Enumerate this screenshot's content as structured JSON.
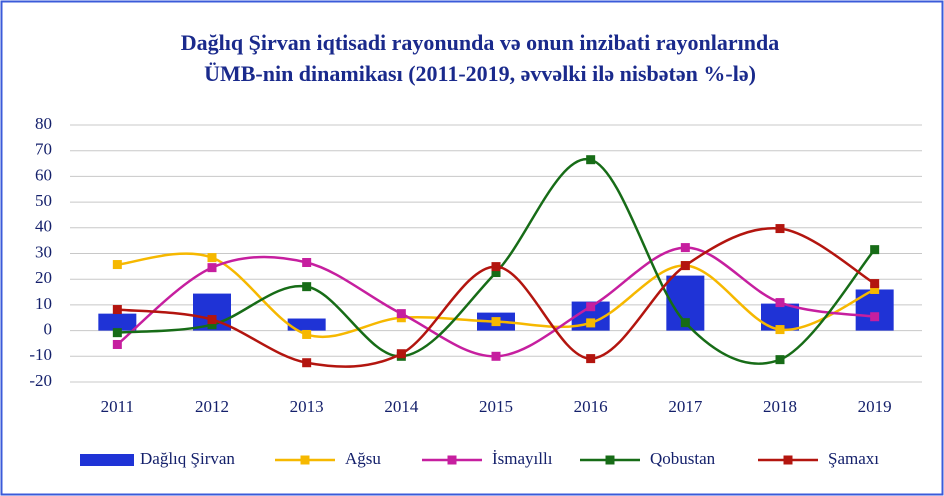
{
  "chart_data": {
    "type": "bar-line",
    "title": [
      "Dağlıq Şirvan iqtisadi rayonunda və onun inzibati rayonlarında",
      "ÜMB-nin dinamikası (2011-2019, əvvəlki ilə nisbətən %-lə)"
    ],
    "categories": [
      "2011",
      "2012",
      "2013",
      "2014",
      "2015",
      "2016",
      "2017",
      "2018",
      "2019"
    ],
    "ylim": [
      -20,
      80
    ],
    "yticks": [
      -20,
      -10,
      0,
      10,
      20,
      30,
      40,
      50,
      60,
      70,
      80
    ],
    "grid": true,
    "legend": "bottom",
    "series": [
      {
        "name": "Dağlıq Şirvan",
        "type": "bar",
        "color": "#1f33d6",
        "values": [
          6.6,
          14.4,
          4.7,
          0,
          7,
          11.3,
          21.4,
          10.5,
          16
        ]
      },
      {
        "name": "Ağsu",
        "type": "line",
        "color": "#f6b800",
        "values": [
          25.7,
          28.4,
          -1.5,
          5,
          3.5,
          3,
          25.3,
          0.4,
          16
        ]
      },
      {
        "name": "İsmayıllı",
        "type": "line",
        "color": "#c61f9f",
        "values": [
          -5.4,
          24.5,
          26.5,
          6.6,
          -10,
          9.3,
          32.3,
          10.9,
          5.4
        ]
      },
      {
        "name": "Qobustan",
        "type": "line",
        "color": "#176c17",
        "values": [
          -0.8,
          2.3,
          17.1,
          -10,
          22.6,
          66.5,
          3.1,
          -11.3,
          31.5
        ]
      },
      {
        "name": "Şamaxı",
        "type": "line",
        "color": "#b3150f",
        "values": [
          8.2,
          4.3,
          -12.5,
          -9,
          24.9,
          -10.9,
          25.3,
          39.7,
          18.3
        ]
      }
    ]
  }
}
